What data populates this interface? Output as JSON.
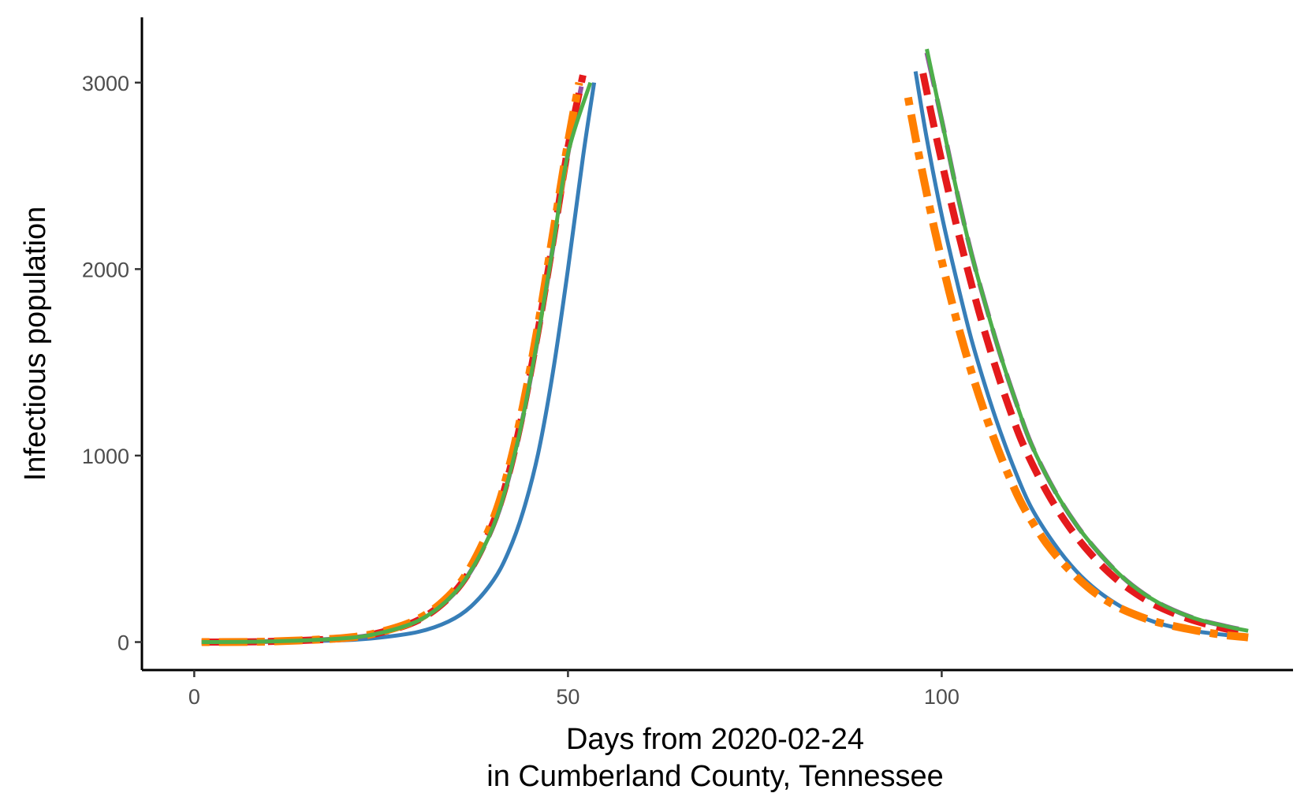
{
  "chart_data": {
    "type": "line",
    "title": "",
    "xlabel": [
      "Days from 2020-02-24",
      "in Cumberland County, Tennessee"
    ],
    "ylabel": "Infectious population",
    "xlim": [
      -7,
      147
    ],
    "ylim": [
      -150,
      3350
    ],
    "x_ticks": [
      0,
      50,
      100
    ],
    "y_ticks": [
      0,
      1000,
      2000,
      3000
    ],
    "grid": false,
    "legend": "none",
    "series": [
      {
        "color": "#377eb8",
        "dash": "solid",
        "segments": [
          [
            [
              1,
              0
            ],
            [
              10,
              2
            ],
            [
              20,
              10
            ],
            [
              25,
              25
            ],
            [
              30,
              55
            ],
            [
              34,
              110
            ],
            [
              37,
              190
            ],
            [
              40,
              330
            ],
            [
              42,
              480
            ],
            [
              44,
              700
            ],
            [
              46,
              1010
            ],
            [
              48,
              1450
            ],
            [
              50,
              2000
            ],
            [
              52,
              2600
            ],
            [
              53.5,
              3000
            ]
          ],
          [
            [
              96.5,
              3060
            ],
            [
              98,
              2700
            ],
            [
              100,
              2290
            ],
            [
              102,
              1940
            ],
            [
              104,
              1620
            ],
            [
              106,
              1350
            ],
            [
              108,
              1110
            ],
            [
              110,
              900
            ],
            [
              112,
              720
            ],
            [
              115,
              530
            ],
            [
              118,
              380
            ],
            [
              121,
              270
            ],
            [
              124,
              190
            ],
            [
              127,
              130
            ],
            [
              130,
              90
            ],
            [
              134,
              58
            ],
            [
              138,
              38
            ],
            [
              141,
              28
            ]
          ]
        ]
      },
      {
        "color": "#984ea3",
        "dash": "longdash",
        "segments": [
          [
            [
              1,
              0
            ],
            [
              10,
              3
            ],
            [
              20,
              20
            ],
            [
              25,
              50
            ],
            [
              30,
              115
            ],
            [
              34,
              230
            ],
            [
              37,
              380
            ],
            [
              40,
              620
            ],
            [
              42,
              870
            ],
            [
              44,
              1210
            ],
            [
              46,
              1640
            ],
            [
              48,
              2120
            ],
            [
              50,
              2620
            ],
            [
              52,
              3020
            ]
          ],
          [
            [
              98,
              3160
            ],
            [
              100,
              2800
            ],
            [
              102,
              2420
            ],
            [
              104,
              2080
            ],
            [
              106,
              1790
            ],
            [
              108,
              1520
            ],
            [
              110,
              1280
            ],
            [
              112,
              1060
            ],
            [
              115,
              820
            ],
            [
              118,
              630
            ],
            [
              121,
              480
            ],
            [
              124,
              355
            ],
            [
              127,
              260
            ],
            [
              130,
              190
            ],
            [
              134,
              125
            ],
            [
              138,
              85
            ],
            [
              141,
              60
            ]
          ]
        ]
      },
      {
        "color": "#e41a1c",
        "dash": "dashed",
        "segments": [
          [
            [
              1,
              0
            ],
            [
              10,
              3
            ],
            [
              20,
              20
            ],
            [
              25,
              52
            ],
            [
              30,
              118
            ],
            [
              34,
              235
            ],
            [
              37,
              390
            ],
            [
              40,
              640
            ],
            [
              42,
              890
            ],
            [
              44,
              1240
            ],
            [
              46,
              1670
            ],
            [
              48,
              2150
            ],
            [
              50,
              2650
            ],
            [
              52,
              3040
            ]
          ],
          [
            [
              97.5,
              3050
            ],
            [
              99,
              2760
            ],
            [
              101,
              2400
            ],
            [
              103,
              2070
            ],
            [
              105,
              1770
            ],
            [
              107,
              1500
            ],
            [
              109,
              1260
            ],
            [
              111,
              1050
            ],
            [
              114,
              810
            ],
            [
              117,
              620
            ],
            [
              120,
              470
            ],
            [
              123,
              350
            ],
            [
              126,
              260
            ],
            [
              129,
              190
            ],
            [
              133,
              125
            ],
            [
              137,
              80
            ],
            [
              141,
              45
            ]
          ]
        ]
      },
      {
        "color": "#ff7f00",
        "dash": "dotdash",
        "segments": [
          [
            [
              1,
              0
            ],
            [
              10,
              3
            ],
            [
              20,
              22
            ],
            [
              25,
              55
            ],
            [
              30,
              125
            ],
            [
              34,
              245
            ],
            [
              37,
              405
            ],
            [
              40,
              660
            ],
            [
              42,
              920
            ],
            [
              44,
              1270
            ],
            [
              46,
              1700
            ],
            [
              48,
              2190
            ],
            [
              50,
              2680
            ],
            [
              51.5,
              3000
            ]
          ],
          [
            [
              95.5,
              2920
            ],
            [
              97,
              2600
            ],
            [
              99,
              2220
            ],
            [
              101,
              1880
            ],
            [
              103,
              1580
            ],
            [
              105,
              1320
            ],
            [
              107,
              1090
            ],
            [
              109,
              890
            ],
            [
              111,
              720
            ],
            [
              114,
              530
            ],
            [
              117,
              390
            ],
            [
              120,
              280
            ],
            [
              123,
              200
            ],
            [
              126,
              145
            ],
            [
              129,
              105
            ],
            [
              133,
              70
            ],
            [
              137,
              42
            ],
            [
              141,
              25
            ]
          ]
        ]
      },
      {
        "color": "#4daf4a",
        "dash": "solid",
        "segments": [
          [
            [
              1,
              0
            ],
            [
              10,
              3
            ],
            [
              20,
              20
            ],
            [
              25,
              50
            ],
            [
              30,
              115
            ],
            [
              34,
              230
            ],
            [
              37,
              380
            ],
            [
              40,
              620
            ],
            [
              42,
              870
            ],
            [
              44,
              1210
            ],
            [
              46,
              1640
            ],
            [
              48,
              2120
            ],
            [
              50,
              2620
            ],
            [
              53,
              3000
            ]
          ],
          [
            [
              98,
              3180
            ],
            [
              100,
              2800
            ],
            [
              102,
              2420
            ],
            [
              104,
              2080
            ],
            [
              106,
              1790
            ],
            [
              108,
              1520
            ],
            [
              110,
              1280
            ],
            [
              112,
              1060
            ],
            [
              115,
              820
            ],
            [
              118,
              630
            ],
            [
              121,
              480
            ],
            [
              124,
              355
            ],
            [
              127,
              260
            ],
            [
              130,
              190
            ],
            [
              134,
              125
            ],
            [
              138,
              85
            ],
            [
              141,
              60
            ]
          ]
        ]
      }
    ]
  }
}
